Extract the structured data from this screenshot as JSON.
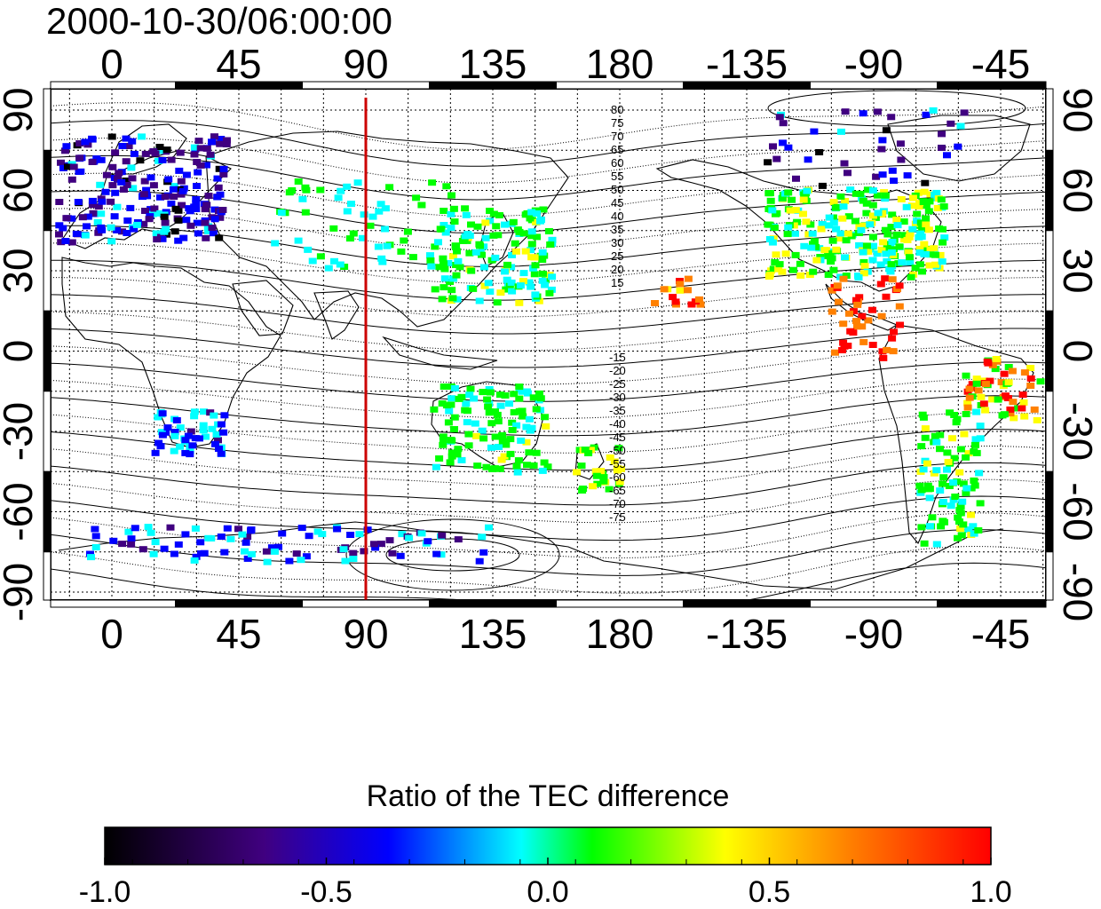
{
  "title": "2000-10-30/06:00:00",
  "map": {
    "lon_ticks": [
      "0",
      "45",
      "90",
      "135",
      "180",
      "-135",
      "-90",
      "-45"
    ],
    "lat_ticks": [
      "90",
      "60",
      "30",
      "0",
      "-30",
      "-60",
      "-90"
    ],
    "marked_meridian": "90",
    "contour_labels_north": [
      "80",
      "75",
      "70",
      "65",
      "60",
      "55",
      "50",
      "45",
      "40",
      "35",
      "30",
      "25",
      "20",
      "15"
    ],
    "contour_labels_south": [
      "-15",
      "-20",
      "-25",
      "-30",
      "-35",
      "-40",
      "-45",
      "-50",
      "-55",
      "-60",
      "-65",
      "-70",
      "-75"
    ],
    "colors": {
      "marked_meridian": "#cc0000"
    }
  },
  "colorbar": {
    "title": "Ratio of the TEC difference",
    "ticks": [
      "-1.0",
      "-0.5",
      "0.0",
      "0.5",
      "1.0"
    ],
    "colors": [
      "#000000",
      "#400080",
      "#0000ff",
      "#00ffff",
      "#00ff00",
      "#ffff00",
      "#ff8000",
      "#ff0000"
    ]
  }
}
